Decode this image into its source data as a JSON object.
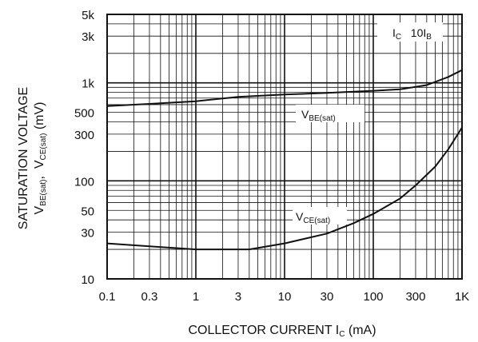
{
  "chart_data": {
    "type": "line",
    "x_scale": "log",
    "y_scale": "log",
    "xlim": [
      0.1,
      1000
    ],
    "ylim": [
      10,
      5000
    ],
    "grid": true,
    "x_ticks": [
      {
        "value": 0.1,
        "label": "0.1"
      },
      {
        "value": 0.3,
        "label": "0.3"
      },
      {
        "value": 1,
        "label": "1"
      },
      {
        "value": 3,
        "label": "3"
      },
      {
        "value": 10,
        "label": "10"
      },
      {
        "value": 30,
        "label": "30"
      },
      {
        "value": 100,
        "label": "100"
      },
      {
        "value": 300,
        "label": "300"
      },
      {
        "value": 1000,
        "label": "1K"
      }
    ],
    "y_ticks": [
      {
        "value": 10,
        "label": "10"
      },
      {
        "value": 30,
        "label": "30"
      },
      {
        "value": 50,
        "label": "50"
      },
      {
        "value": 100,
        "label": "100"
      },
      {
        "value": 300,
        "label": "300"
      },
      {
        "value": 500,
        "label": "500"
      },
      {
        "value": 1000,
        "label": "1k"
      },
      {
        "value": 3000,
        "label": "3k"
      },
      {
        "value": 5000,
        "label": "5k"
      }
    ],
    "xlabel": {
      "main": "COLLECTOR CURRENT I",
      "sub": "C",
      "tail": " (mA)"
    },
    "ylabel": {
      "line1": "SATURATION VOLTAGE",
      "line2_parts": [
        {
          "t": "V",
          "sub": false
        },
        {
          "t": "BE(sat)",
          "sub": true
        },
        {
          "t": ",  V",
          "sub": false
        },
        {
          "t": "CE(sat)",
          "sub": true
        },
        {
          "t": " (mV)",
          "sub": false
        }
      ]
    },
    "condition": {
      "main": "I",
      "sub": "C",
      "tail": "   10I",
      "sub2": "B"
    },
    "series": [
      {
        "name": "VBE(sat)",
        "label_main": "V",
        "label_sub": "BE(sat)",
        "label_anchor": {
          "x": 30,
          "y": 560
        },
        "x": [
          0.1,
          0.3,
          1,
          3,
          10,
          30,
          100,
          200,
          400,
          700,
          1000
        ],
        "y": [
          580,
          610,
          650,
          720,
          760,
          790,
          830,
          860,
          950,
          1150,
          1350
        ]
      },
      {
        "name": "VCE(sat)",
        "label_main": "V",
        "label_sub": "CE(sat)",
        "label_anchor": {
          "x": 30,
          "y": 55
        },
        "x": [
          0.1,
          0.3,
          1,
          2,
          4,
          10,
          30,
          60,
          100,
          200,
          300,
          500,
          700,
          1000
        ],
        "y": [
          23,
          21.5,
          20,
          20,
          20,
          23,
          29,
          37,
          46,
          66,
          90,
          140,
          210,
          350
        ]
      }
    ],
    "colors": {
      "line": "#111111",
      "grid": "#111111",
      "box_fill": "#ffffff"
    }
  }
}
